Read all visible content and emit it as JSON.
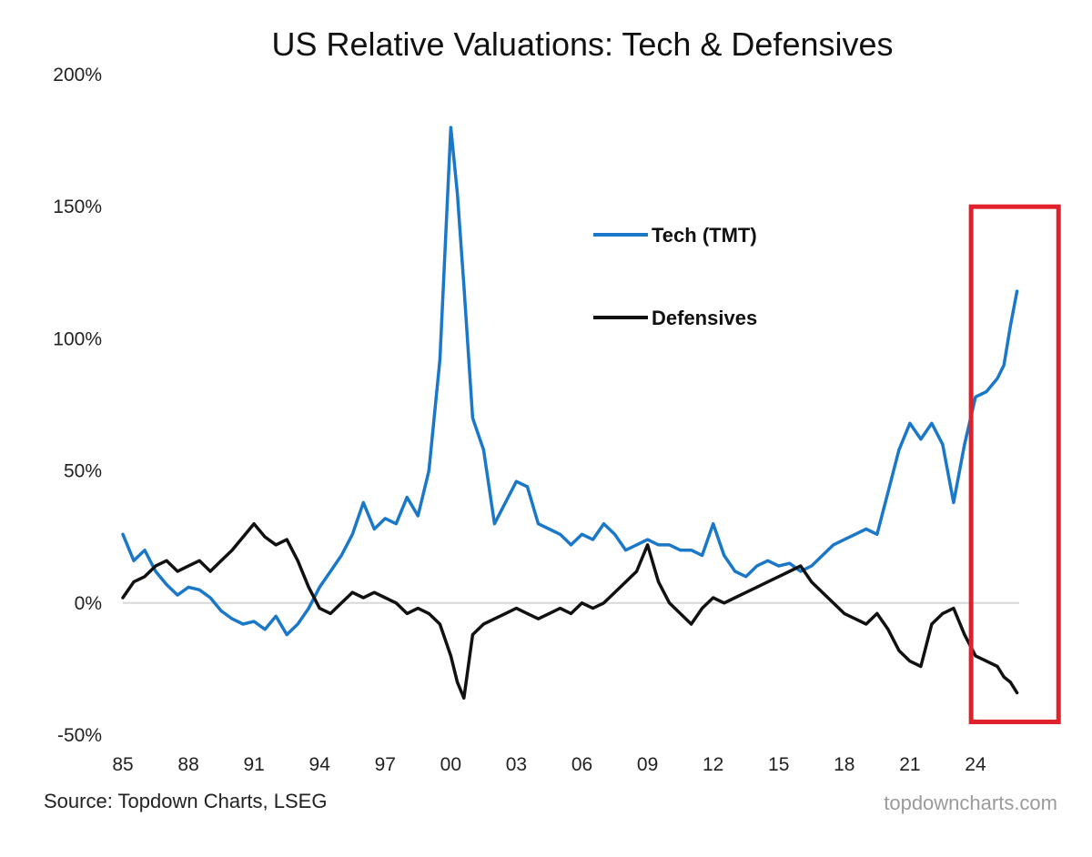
{
  "chart_data": {
    "type": "line",
    "title": "US Relative Valuations: Tech & Defensives",
    "xlabel": "",
    "ylabel": "",
    "x_ticks": [
      "85",
      "88",
      "91",
      "94",
      "97",
      "00",
      "03",
      "06",
      "09",
      "12",
      "15",
      "18",
      "21",
      "24"
    ],
    "y_ticks": [
      "200%",
      "150%",
      "100%",
      "50%",
      "0%",
      "-50%"
    ],
    "ylim": [
      -50,
      200
    ],
    "xlim": [
      1985,
      2026
    ],
    "grid": false,
    "legend_placement": "upper-right inside plot",
    "highlight_box": {
      "x_range": [
        2023.8,
        2027.8
      ],
      "y_range": [
        -45,
        150
      ],
      "color": "#e0202a"
    },
    "series": [
      {
        "name": "Tech (TMT)",
        "color": "#1b78c8",
        "x": [
          1985.0,
          1985.5,
          1986.0,
          1986.5,
          1987.0,
          1987.5,
          1988.0,
          1988.5,
          1989.0,
          1989.5,
          1990.0,
          1990.5,
          1991.0,
          1991.5,
          1992.0,
          1992.5,
          1993.0,
          1993.5,
          1994.0,
          1994.5,
          1995.0,
          1995.5,
          1996.0,
          1996.5,
          1997.0,
          1997.5,
          1998.0,
          1998.5,
          1999.0,
          1999.5,
          2000.0,
          2000.3,
          2000.6,
          2001.0,
          2001.5,
          2002.0,
          2002.5,
          2003.0,
          2003.5,
          2004.0,
          2004.5,
          2005.0,
          2005.5,
          2006.0,
          2006.5,
          2007.0,
          2007.5,
          2008.0,
          2008.5,
          2009.0,
          2009.5,
          2010.0,
          2010.5,
          2011.0,
          2011.5,
          2012.0,
          2012.5,
          2013.0,
          2013.5,
          2014.0,
          2014.5,
          2015.0,
          2015.5,
          2016.0,
          2016.5,
          2017.0,
          2017.5,
          2018.0,
          2018.5,
          2019.0,
          2019.5,
          2020.0,
          2020.5,
          2021.0,
          2021.5,
          2022.0,
          2022.5,
          2023.0,
          2023.5,
          2024.0,
          2024.5,
          2025.0,
          2025.3,
          2025.6,
          2025.9
        ],
        "values": [
          26,
          16,
          20,
          12,
          7,
          3,
          6,
          5,
          2,
          -3,
          -6,
          -8,
          -7,
          -10,
          -5,
          -12,
          -8,
          -2,
          6,
          12,
          18,
          26,
          38,
          28,
          32,
          30,
          40,
          33,
          50,
          92,
          180,
          155,
          120,
          70,
          58,
          30,
          38,
          46,
          44,
          30,
          28,
          26,
          22,
          26,
          24,
          30,
          26,
          20,
          22,
          24,
          22,
          22,
          20,
          20,
          18,
          30,
          18,
          12,
          10,
          14,
          16,
          14,
          15,
          12,
          14,
          18,
          22,
          24,
          26,
          28,
          26,
          42,
          58,
          68,
          62,
          68,
          60,
          38,
          60,
          78,
          80,
          85,
          90,
          105,
          118
        ]
      },
      {
        "name": "Defensives",
        "color": "#111111",
        "x": [
          1985.0,
          1985.5,
          1986.0,
          1986.5,
          1987.0,
          1987.5,
          1988.0,
          1988.5,
          1989.0,
          1989.5,
          1990.0,
          1990.5,
          1991.0,
          1991.5,
          1992.0,
          1992.5,
          1993.0,
          1993.5,
          1994.0,
          1994.5,
          1995.0,
          1995.5,
          1996.0,
          1996.5,
          1997.0,
          1997.5,
          1998.0,
          1998.5,
          1999.0,
          1999.5,
          2000.0,
          2000.3,
          2000.6,
          2001.0,
          2001.5,
          2002.0,
          2002.5,
          2003.0,
          2003.5,
          2004.0,
          2004.5,
          2005.0,
          2005.5,
          2006.0,
          2006.5,
          2007.0,
          2007.5,
          2008.0,
          2008.5,
          2009.0,
          2009.5,
          2010.0,
          2010.5,
          2011.0,
          2011.5,
          2012.0,
          2012.5,
          2013.0,
          2013.5,
          2014.0,
          2014.5,
          2015.0,
          2015.5,
          2016.0,
          2016.5,
          2017.0,
          2017.5,
          2018.0,
          2018.5,
          2019.0,
          2019.5,
          2020.0,
          2020.5,
          2021.0,
          2021.5,
          2022.0,
          2022.5,
          2023.0,
          2023.5,
          2024.0,
          2024.5,
          2025.0,
          2025.3,
          2025.6,
          2025.9
        ],
        "values": [
          2,
          8,
          10,
          14,
          16,
          12,
          14,
          16,
          12,
          16,
          20,
          25,
          30,
          25,
          22,
          24,
          16,
          6,
          -2,
          -4,
          0,
          4,
          2,
          4,
          2,
          0,
          -4,
          -2,
          -4,
          -8,
          -20,
          -30,
          -36,
          -12,
          -8,
          -6,
          -4,
          -2,
          -4,
          -6,
          -4,
          -2,
          -4,
          0,
          -2,
          0,
          4,
          8,
          12,
          22,
          8,
          0,
          -4,
          -8,
          -2,
          2,
          0,
          2,
          4,
          6,
          8,
          10,
          12,
          14,
          8,
          4,
          0,
          -4,
          -6,
          -8,
          -4,
          -10,
          -18,
          -22,
          -24,
          -8,
          -4,
          -2,
          -12,
          -20,
          -22,
          -24,
          -28,
          -30,
          -34
        ]
      }
    ]
  },
  "source_text": "Source: Topdown Charts, LSEG",
  "watermark_text": "topdowncharts.com"
}
